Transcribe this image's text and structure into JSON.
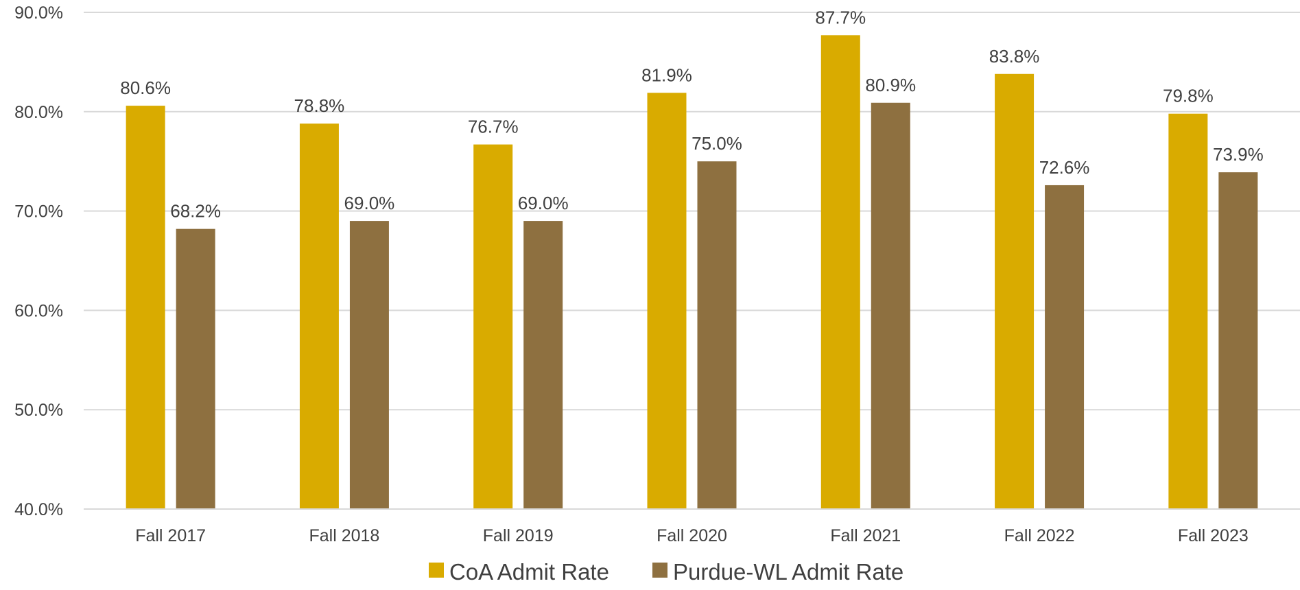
{
  "chart_data": {
    "type": "bar",
    "title": "",
    "xlabel": "",
    "ylabel": "",
    "categories": [
      "Fall 2017",
      "Fall 2018",
      "Fall 2019",
      "Fall 2020",
      "Fall 2021",
      "Fall 2022",
      "Fall 2023"
    ],
    "series": [
      {
        "name": "CoA Admit Rate",
        "color": "#D9AB00",
        "values": [
          80.6,
          78.8,
          76.7,
          81.9,
          87.7,
          83.8,
          79.8
        ],
        "labels": [
          "80.6%",
          "78.8%",
          "76.7%",
          "81.9%",
          "87.7%",
          "83.8%",
          "79.8%"
        ]
      },
      {
        "name": "Purdue-WL Admit Rate",
        "color": "#8E7040",
        "values": [
          68.2,
          69.0,
          69.0,
          75.0,
          80.9,
          72.6,
          73.9
        ],
        "labels": [
          "68.2%",
          "69.0%",
          "69.0%",
          "75.0%",
          "80.9%",
          "72.6%",
          "73.9%"
        ]
      }
    ],
    "ylim": [
      40,
      90
    ],
    "yticks": [
      "40.0%",
      "50.0%",
      "60.0%",
      "70.0%",
      "80.0%",
      "90.0%"
    ],
    "ytick_values": [
      40,
      50,
      60,
      70,
      80,
      90
    ],
    "grid": true,
    "gridline_color": "#D9D9D9",
    "legend_position": "bottom-center"
  }
}
